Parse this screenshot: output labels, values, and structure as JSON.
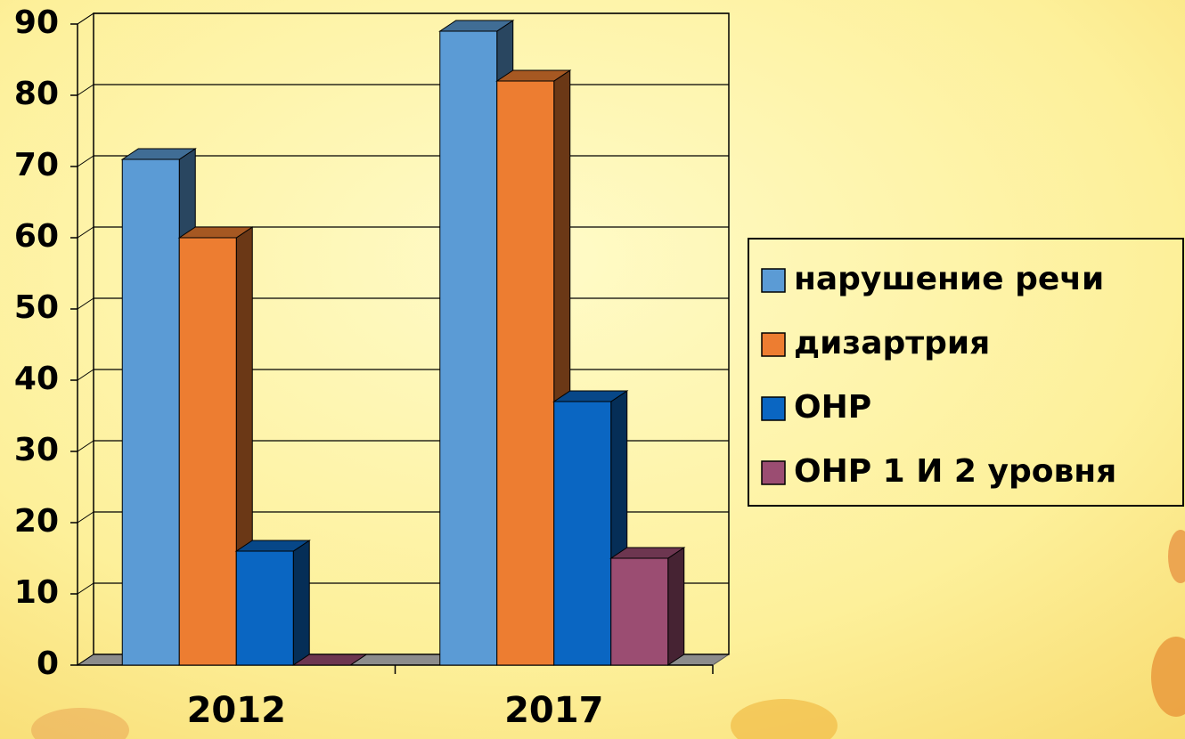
{
  "chart_data": {
    "type": "bar",
    "categories": [
      "2012",
      "2017"
    ],
    "series": [
      {
        "name": "нарушение речи",
        "color": "#5b9bd5",
        "values": [
          71,
          89
        ]
      },
      {
        "name": "дизартрия",
        "color": "#ed7d31",
        "values": [
          60,
          82
        ]
      },
      {
        "name": "ОНР",
        "color": "#0a66c2",
        "values": [
          16,
          37
        ]
      },
      {
        "name": "ОНР 1 И 2 уровня",
        "color": "#9b4d72",
        "values": [
          0,
          15
        ]
      }
    ],
    "ylim": [
      0,
      90
    ],
    "yticks": [
      0,
      10,
      20,
      30,
      40,
      50,
      60,
      70,
      80,
      90
    ],
    "grid": true,
    "legend": "right"
  }
}
